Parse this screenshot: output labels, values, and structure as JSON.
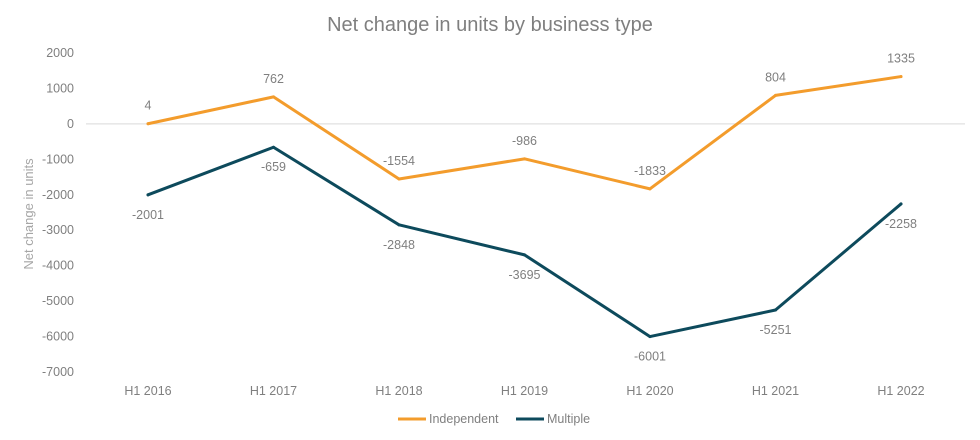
{
  "chart_data": {
    "type": "line",
    "title": "Net change in units by business type",
    "xlabel": "",
    "ylabel": "Net change in units",
    "categories": [
      "H1 2016",
      "H1 2017",
      "H1 2018",
      "H1 2019",
      "H1 2020",
      "H1 2021",
      "H1 2022"
    ],
    "ylim": [
      -7000,
      2000
    ],
    "yticks": [
      2000,
      1000,
      0,
      -1000,
      -2000,
      -3000,
      -4000,
      -5000,
      -6000,
      -7000
    ],
    "grid": false,
    "legend_position": "bottom",
    "series": [
      {
        "name": "Independent",
        "color": "#F39C2C",
        "values": [
          4,
          762,
          -1554,
          -986,
          -1833,
          804,
          1335
        ],
        "labels": [
          "4",
          "762",
          "-1554",
          "-986",
          "-1833",
          "804",
          "1335"
        ],
        "label_side": "above"
      },
      {
        "name": "Multiple",
        "color": "#0D4A5C",
        "values": [
          -2001,
          -659,
          -2848,
          -3695,
          -6001,
          -5251,
          -2258
        ],
        "labels": [
          "-2001",
          "-659",
          "-2848",
          "-3695",
          "-6001",
          "-5251",
          "-2258"
        ],
        "label_side": "below"
      }
    ]
  }
}
